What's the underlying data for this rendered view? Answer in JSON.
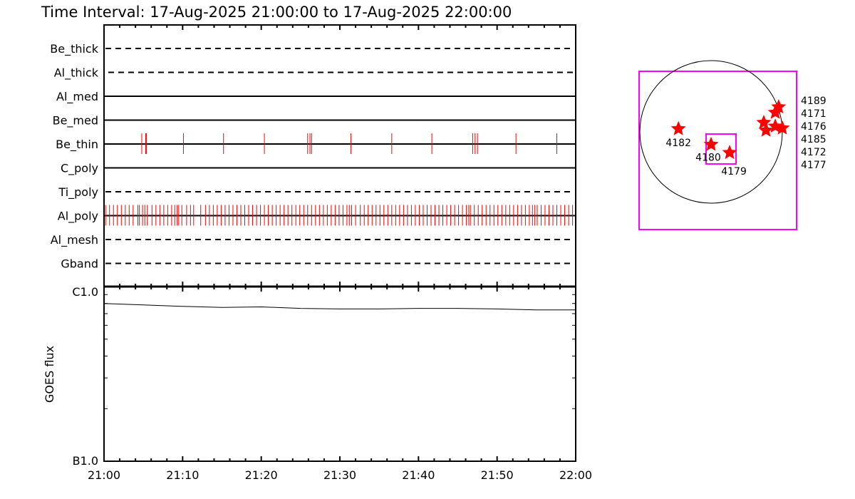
{
  "title": "Time Interval: 17-Aug-2025 21:00:00 to 17-Aug-2025 22:00:00",
  "colors": {
    "obs": "#ff0000",
    "box": "#ff00ff",
    "axis": "#000000"
  },
  "chart_data": [
    {
      "type": "scatter",
      "description_of_marks": "observation ticks per filter",
      "x_unit": "minutes after 21:00",
      "xlim": [
        0,
        60
      ],
      "x_tick_labels": [
        "21:00",
        "21:10",
        "21:20",
        "21:30",
        "21:40",
        "21:50",
        "22:00"
      ],
      "filters": [
        {
          "name": "Be_thick",
          "style": "dashed",
          "obs": []
        },
        {
          "name": "Al_thick",
          "style": "dashed",
          "obs": []
        },
        {
          "name": "Al_med",
          "style": "solid",
          "obs": []
        },
        {
          "name": "Be_med",
          "style": "solid",
          "obs": []
        },
        {
          "name": "Be_thin",
          "style": "solid",
          "obs": [
            4.8,
            5.3,
            5.4,
            10.1,
            15.2,
            20.4,
            25.9,
            26.2,
            26.4,
            31.4,
            36.6,
            41.7,
            46.9,
            47.2,
            47.5,
            52.4,
            57.6
          ]
        },
        {
          "name": "C_poly",
          "style": "solid",
          "obs": []
        },
        {
          "name": "Ti_poly",
          "style": "dashed",
          "obs": []
        },
        {
          "name": "Al_poly",
          "style": "solid",
          "obs": [
            0.2,
            0.7,
            1.2,
            1.7,
            2.2,
            2.7,
            3.2,
            3.7,
            4.3,
            4.5,
            4.9,
            5.2,
            5.5,
            6.1,
            6.6,
            7.1,
            7.6,
            8.1,
            8.6,
            9.0,
            9.3,
            9.5,
            9.9,
            10.5,
            11.0,
            11.4,
            12.3,
            12.9,
            13.4,
            13.9,
            14.4,
            14.9,
            15.4,
            15.9,
            16.4,
            16.9,
            17.4,
            17.9,
            18.4,
            18.9,
            19.4,
            19.9,
            20.4,
            20.9,
            21.4,
            21.9,
            22.4,
            22.9,
            23.4,
            23.9,
            24.4,
            24.9,
            25.4,
            25.9,
            26.4,
            26.9,
            27.4,
            27.9,
            28.4,
            28.9,
            29.4,
            29.9,
            30.4,
            30.9,
            31.2,
            31.5,
            32.0,
            32.6,
            33.1,
            33.6,
            34.1,
            34.6,
            35.1,
            35.6,
            36.1,
            36.6,
            37.1,
            37.6,
            38.1,
            38.6,
            39.1,
            39.6,
            40.1,
            40.6,
            41.1,
            41.6,
            42.1,
            42.6,
            43.1,
            43.6,
            44.1,
            44.6,
            45.1,
            45.6,
            46.1,
            46.4,
            46.6,
            47.1,
            47.6,
            48.1,
            48.6,
            49.1,
            49.6,
            50.1,
            50.6,
            51.1,
            51.6,
            52.1,
            52.6,
            53.1,
            53.6,
            54.1,
            54.5,
            54.8,
            55.1,
            55.6,
            56.1,
            56.6,
            57.1,
            57.6,
            58.1,
            58.6,
            59.1,
            59.6
          ]
        },
        {
          "name": "Al_mesh",
          "style": "dashed",
          "obs": []
        },
        {
          "name": "Gband",
          "style": "dashed",
          "obs": []
        }
      ]
    },
    {
      "type": "line",
      "ylabel": "GOES flux",
      "y_scale": "log",
      "ylim": [
        1e-07,
        1e-06
      ],
      "y_tick_labels": [
        "B1.0",
        "C1.0"
      ],
      "x_unit": "minutes after 21:00",
      "x": [
        0,
        5,
        10,
        15,
        20,
        25,
        30,
        35,
        40,
        45,
        50,
        55,
        60
      ],
      "y": [
        8e-07,
        7.85e-07,
        7.7e-07,
        7.6e-07,
        7.65e-07,
        7.5e-07,
        7.45e-07,
        7.45e-07,
        7.5e-07,
        7.5e-07,
        7.45e-07,
        7.35e-07,
        7.35e-07
      ]
    },
    {
      "type": "scatter",
      "description_of_marks": "active region locator map",
      "x_unit": "arcsec",
      "y_unit": "arcsec",
      "points": [
        {
          "label": "4182",
          "x": -440,
          "y": 40
        },
        {
          "label": "4180",
          "x": 0,
          "y": -170
        },
        {
          "label": "4179",
          "x": 250,
          "y": -280
        },
        {
          "label": "4189",
          "x": 910,
          "y": 335
        },
        {
          "label": "4171",
          "x": 865,
          "y": 260
        },
        {
          "label": "4172",
          "x": 960,
          "y": 50
        },
        {
          "label": "4176",
          "x": 710,
          "y": 125
        },
        {
          "label": "4185",
          "x": 865,
          "y": 75
        },
        {
          "label": "4177",
          "x": 740,
          "y": 20
        }
      ]
    }
  ]
}
